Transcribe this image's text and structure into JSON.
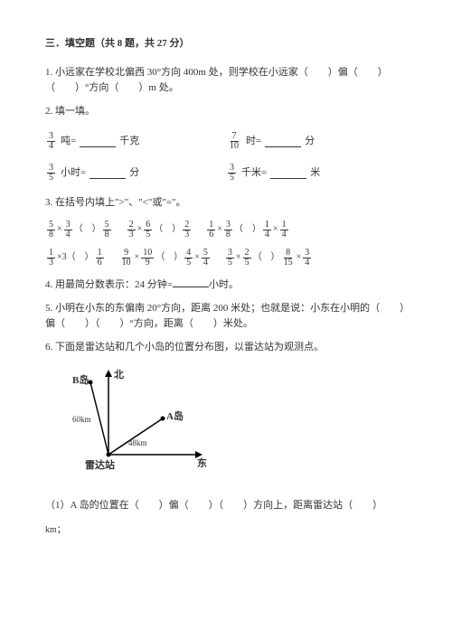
{
  "title": "三．填空题（共 8 题，共 27 分）",
  "q1": "1. 小远家在学校北偏西 30°方向 400m 处，则学校在小远家（　　）偏（　　）（　　）°方向（　　）m 处。",
  "q2": "2. 填一填。",
  "conv": {
    "a": {
      "num": "3",
      "den": "4",
      "unit1": "吨=",
      "unit2": "千克"
    },
    "b": {
      "num": "7",
      "den": "10",
      "unit1": "时=",
      "unit2": "分"
    },
    "c": {
      "num": "3",
      "den": "5",
      "unit1": "小时=",
      "unit2": "分"
    },
    "d": {
      "num": "3",
      "den": "5",
      "unit1": "千米=",
      "unit2": "米"
    }
  },
  "q3": "3. 在括号内填上\">\"、\"<\"或\"=\"。",
  "cmp": {
    "r1": [
      {
        "ln": "5",
        "ld": "8",
        "op": "×",
        "rn": "3",
        "rd": "4",
        "cn": "5",
        "cd": "8"
      },
      {
        "ln": "2",
        "ld": "3",
        "op": "×",
        "rn": "6",
        "rd": "5",
        "cn": "2",
        "cd": "3"
      },
      {
        "ln": "1",
        "ld": "6",
        "op": "×",
        "rn": "3",
        "rd": "8",
        "cn": "1",
        "cd": "4",
        "cop": "×",
        "cnn": "1",
        "cdd": "4"
      }
    ],
    "r2": [
      {
        "ln": "1",
        "ld": "3",
        "op": "×3",
        "cn": "1",
        "cd": "6"
      },
      {
        "ln": "9",
        "ld": "10",
        "op": "×",
        "rn": "10",
        "rd": "9",
        "cn": "4",
        "cd": "5",
        "cop": "×",
        "cnn": "5",
        "cdd": "4"
      },
      {
        "ln": "3",
        "ld": "5",
        "op": "×",
        "rn": "2",
        "rd": "5",
        "cn": "8",
        "cd": "15",
        "cop": "×",
        "cnn": "3",
        "cdd": "4"
      }
    ]
  },
  "q4": "4. 用最简分数表示：24 分钟=",
  "q4b": "小时。",
  "q5": "5. 小明在小东的东偏南 20°方向，距离 200 米处；也就是说：小东在小明的（　　）偏（　　）（　　）°方向，距离（　　）米处。",
  "q6": "6. 下面是雷达站和几个小岛的位置分布图，以雷达站为观测点。",
  "diagram": {
    "north": "北",
    "east": "东",
    "station": "雷达站",
    "islandA": "A岛",
    "islandB": "B岛",
    "distA": "48km",
    "distB": "60km"
  },
  "q6_1": "（1）A 岛的位置在（　　）偏（　　）（　　）方向上，距离雷达站（　　）",
  "km": "km；"
}
